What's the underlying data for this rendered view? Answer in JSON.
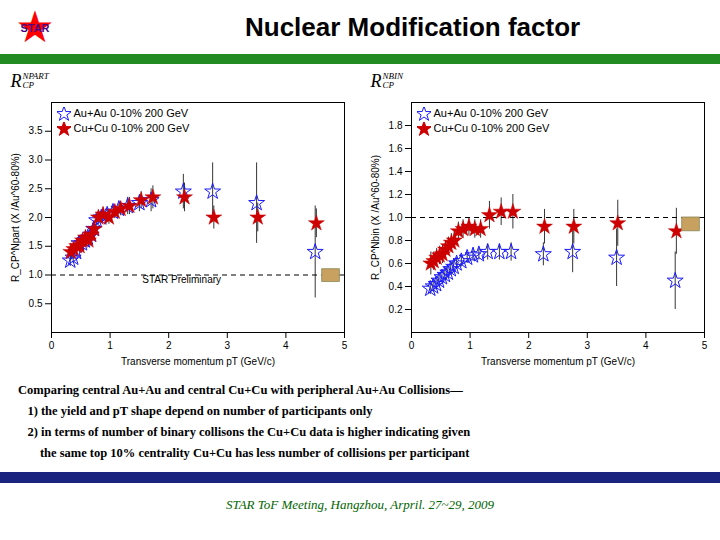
{
  "title": "Nuclear Modification factor",
  "annotations": [
    {
      "text": "★",
      "color": "red"
    },
    {
      "text": "STAR",
      "color": "#4B0082"
    }
  ],
  "header_bar_color": "#228B22",
  "caption": [
    "Comparing central Au+Au and central Cu+Cu with peripheral Au+Au Collisions—",
    "   1) the yield and pT shape depend on number of participants only",
    "   2) in terms of number of binary collisons the Cu+Cu data is higher indicating given",
    "       the same top 10% centrality Cu+Cu has less number of collisions per participant"
  ],
  "footer_bar_color": "#1a237e",
  "footer": {
    "text": "STAR ToF Meeting, Hangzhou, Arpril. 27~29, 2009",
    "color": "#006400"
  },
  "chart_data": [
    {
      "type": "scatter",
      "annotations": [
        {
          "text": "R"
        },
        {
          "text": "NPART"
        },
        {
          "text": "CP"
        },
        {
          "text": "STAR Preliminary",
          "x": 1.55,
          "y": 0.92
        }
      ],
      "xlabel": "Transverse momentum pT (GeV/c)",
      "ylabel": "R_CP^Npart (X /Au^60-80%)",
      "xlim": [
        0,
        5
      ],
      "ylim": [
        0,
        4.0
      ],
      "xticks": [
        0,
        1,
        2,
        3,
        4,
        5
      ],
      "yticks": [
        0.5,
        {
          "value": 1.0,
          "label": "1.0"
        },
        1.5,
        {
          "value": 2.0,
          "label": "2.0"
        },
        2.5,
        {
          "value": 3.0,
          "label": "3.0"
        },
        3.5
      ],
      "legend": "upper left",
      "series": [
        {
          "name": "Au+Au 0-10% 200 GeV",
          "color": "#1a1aff",
          "marker": "star_open",
          "x": [
            0.32,
            0.37,
            0.42,
            0.47,
            0.52,
            0.57,
            0.62,
            0.67,
            0.72,
            0.77,
            0.85,
            0.95,
            1.05,
            1.15,
            1.3,
            1.5,
            1.7,
            2.25,
            2.75,
            3.5,
            4.5
          ],
          "values": [
            1.25,
            1.3,
            1.4,
            1.55,
            1.55,
            1.6,
            1.65,
            1.7,
            1.8,
            1.95,
            2.0,
            2.05,
            2.1,
            2.15,
            2.2,
            2.25,
            2.3,
            2.45,
            2.45,
            2.25,
            1.4
          ],
          "errors": [
            0.1,
            0.1,
            0.1,
            0.1,
            0.1,
            0.1,
            0.1,
            0.1,
            0.1,
            0.1,
            0.1,
            0.1,
            0.1,
            0.1,
            0.15,
            0.15,
            0.2,
            0.3,
            0.5,
            0.7,
            0.8
          ]
        },
        {
          "name": "Cu+Cu 0-10% 200 GeV",
          "color": "#cc0000",
          "marker": "star",
          "x": [
            0.33,
            0.38,
            0.43,
            0.48,
            0.53,
            0.58,
            0.63,
            0.68,
            0.73,
            0.8,
            0.88,
            0.98,
            1.08,
            1.18,
            1.33,
            1.53,
            1.73,
            2.27,
            2.77,
            3.52,
            4.52
          ],
          "values": [
            1.4,
            1.45,
            1.5,
            1.5,
            1.6,
            1.65,
            1.6,
            1.7,
            1.8,
            2.0,
            2.05,
            2.0,
            2.1,
            2.15,
            2.2,
            2.3,
            2.35,
            2.35,
            2.0,
            2.0,
            1.9
          ],
          "errors": [
            0.15,
            0.12,
            0.12,
            0.12,
            0.12,
            0.12,
            0.12,
            0.12,
            0.12,
            0.12,
            0.12,
            0.12,
            0.12,
            0.12,
            0.15,
            0.15,
            0.2,
            0.25,
            0.2,
            0.25,
            0.25
          ]
        }
      ],
      "reference_lines": [
        {
          "y": 1.0,
          "line_style": "dashed"
        }
      ],
      "syst_box": {
        "x": 4.62,
        "y": 0.88,
        "width": 0.3,
        "height": 0.22,
        "color": "#c8a060"
      }
    },
    {
      "type": "scatter",
      "annotations": [
        {
          "text": "R"
        },
        {
          "text": "NBIN"
        },
        {
          "text": "CP"
        }
      ],
      "xlabel": "Transverse momentum pT (GeV/c)",
      "ylabel": "R_CP^Nbin (X /Au^60-80%)",
      "xlim": [
        0,
        5
      ],
      "ylim": [
        0,
        2.0
      ],
      "xticks": [
        0,
        1,
        2,
        3,
        4,
        5
      ],
      "yticks": [
        0.2,
        0.4,
        0.6,
        0.8,
        {
          "value": 1.0,
          "label": "1.0"
        },
        1.2,
        1.4,
        1.6,
        1.8
      ],
      "legend": "upper left",
      "series": [
        {
          "name": "Au+Au 0-10% 200 GeV",
          "color": "#1a1aff",
          "marker": "star_open",
          "x": [
            0.32,
            0.37,
            0.42,
            0.47,
            0.52,
            0.57,
            0.62,
            0.67,
            0.72,
            0.77,
            0.85,
            0.95,
            1.05,
            1.15,
            1.3,
            1.5,
            1.7,
            2.25,
            2.75,
            3.5,
            4.5
          ],
          "values": [
            0.38,
            0.4,
            0.42,
            0.45,
            0.48,
            0.5,
            0.52,
            0.55,
            0.57,
            0.6,
            0.62,
            0.65,
            0.67,
            0.68,
            0.7,
            0.7,
            0.7,
            0.68,
            0.7,
            0.65,
            0.45
          ],
          "errors": [
            0.05,
            0.05,
            0.05,
            0.05,
            0.05,
            0.05,
            0.05,
            0.05,
            0.05,
            0.05,
            0.05,
            0.05,
            0.05,
            0.05,
            0.07,
            0.07,
            0.08,
            0.1,
            0.18,
            0.25,
            0.25
          ]
        },
        {
          "name": "Cu+Cu 0-10% 200 GeV",
          "color": "#cc0000",
          "marker": "star",
          "x": [
            0.33,
            0.38,
            0.43,
            0.48,
            0.53,
            0.58,
            0.63,
            0.68,
            0.73,
            0.8,
            0.88,
            0.98,
            1.08,
            1.18,
            1.33,
            1.53,
            1.73,
            2.27,
            2.77,
            3.52,
            4.52
          ],
          "values": [
            0.6,
            0.62,
            0.65,
            0.67,
            0.68,
            0.72,
            0.75,
            0.78,
            0.8,
            0.88,
            0.9,
            0.92,
            0.9,
            0.9,
            1.02,
            1.05,
            1.05,
            0.92,
            0.92,
            0.95,
            0.88
          ],
          "errors": [
            0.1,
            0.08,
            0.08,
            0.08,
            0.08,
            0.08,
            0.08,
            0.08,
            0.08,
            0.08,
            0.08,
            0.08,
            0.08,
            0.08,
            0.12,
            0.12,
            0.15,
            0.15,
            0.15,
            0.2,
            0.2
          ]
        }
      ],
      "reference_lines": [
        {
          "y": 1.0,
          "line_style": "dashed"
        }
      ],
      "syst_box": {
        "x": 4.62,
        "y": 0.88,
        "width": 0.3,
        "height": 0.12,
        "color": "#c8a060"
      }
    }
  ]
}
